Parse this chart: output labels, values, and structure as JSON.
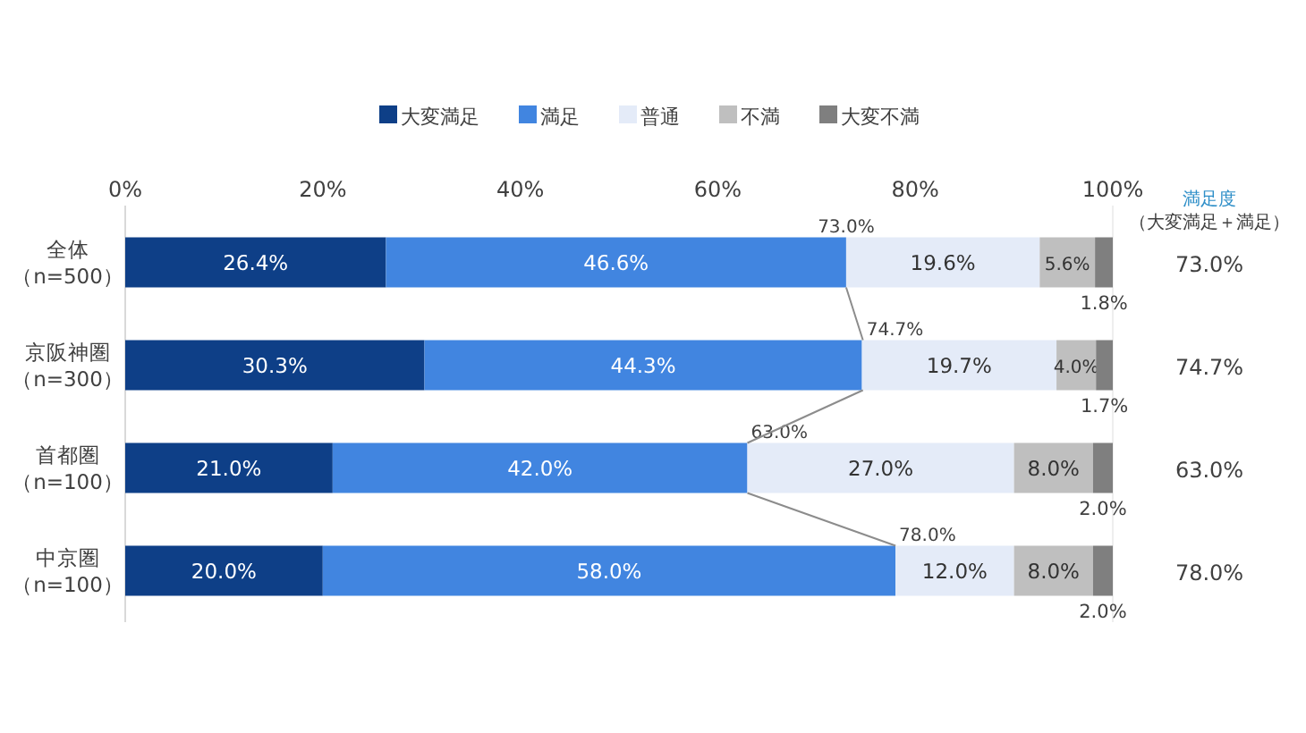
{
  "chart_data": {
    "type": "bar",
    "orientation": "horizontal",
    "stacked": true,
    "categories": [
      "全体（n=500）",
      "京阪神圏（n=300）",
      "首都圏（n=100）",
      "中京圏（n=100）"
    ],
    "series": [
      {
        "name": "大変満足",
        "color": "#0e3f87",
        "values": [
          26.4,
          30.3,
          21.0,
          20.0
        ],
        "value_labels": [
          "26.4%",
          "30.3%",
          "21.0%",
          "20.0%"
        ]
      },
      {
        "name": "満足",
        "color": "#4185e0",
        "values": [
          46.6,
          44.3,
          42.0,
          58.0
        ],
        "value_labels": [
          "46.6%",
          "44.3%",
          "42.0%",
          "58.0%"
        ]
      },
      {
        "name": "普通",
        "color": "#e4ebf8",
        "values": [
          19.6,
          19.7,
          27.0,
          12.0
        ],
        "value_labels": [
          "19.6%",
          "19.7%",
          "27.0%",
          "12.0%"
        ]
      },
      {
        "name": "不満",
        "color": "#bfbfbf",
        "values": [
          5.6,
          4.0,
          8.0,
          8.0
        ],
        "value_labels": [
          "5.6%",
          "4.0%",
          "8.0%",
          "8.0%"
        ]
      },
      {
        "name": "大変不満",
        "color": "#7f7f7f",
        "values": [
          1.8,
          1.7,
          2.0,
          2.0
        ],
        "value_labels": [
          "1.8%",
          "1.7%",
          "2.0%",
          "2.0%"
        ]
      }
    ],
    "xlim": [
      0,
      100
    ],
    "xticks": [
      {
        "value": 0,
        "label": "0%"
      },
      {
        "value": 20,
        "label": "20%"
      },
      {
        "value": 40,
        "label": "40%"
      },
      {
        "value": 60,
        "label": "60%"
      },
      {
        "value": 80,
        "label": "80%"
      },
      {
        "value": 100,
        "label": "100%"
      }
    ],
    "legend": "top",
    "annotations": [
      "満足度（大変満足＋満足）",
      "73.0%",
      "74.7%",
      "63.0%",
      "78.0%",
      {
        "text": "73.0%",
        "x": 73.0,
        "y": "全体（n=500）"
      },
      {
        "text": "74.7%",
        "x": 74.7,
        "y": "京阪神圏（n=300）"
      },
      {
        "text": "63.0%",
        "x": 63.0,
        "y": "首都圏（n=100）"
      },
      {
        "text": "78.0%",
        "x": 78.0,
        "y": "中京圏（n=100）"
      }
    ]
  }
}
